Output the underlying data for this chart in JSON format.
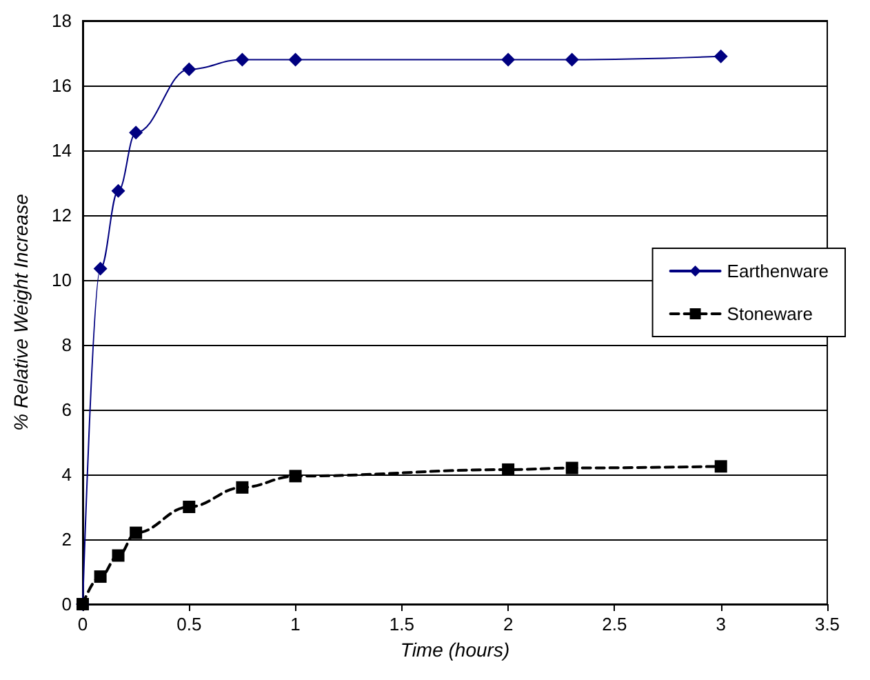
{
  "chart_data": {
    "type": "line",
    "xlabel": "Time (hours)",
    "ylabel": "% Relative Weight Increase",
    "xlim": [
      0,
      3.5
    ],
    "xticks": [
      0,
      0.5,
      1,
      1.5,
      2,
      2.5,
      3,
      3.5
    ],
    "ylim": [
      0,
      18
    ],
    "yticks": [
      0,
      2,
      4,
      6,
      8,
      10,
      12,
      14,
      16,
      18
    ],
    "x": [
      0,
      0.083,
      0.167,
      0.25,
      0.5,
      0.75,
      1,
      2,
      2.3,
      3
    ],
    "series": [
      {
        "name": "Earthenware",
        "color": "#000080",
        "marker": "diamond",
        "line_style": "solid",
        "values": [
          0,
          10.35,
          12.75,
          14.55,
          16.5,
          16.8,
          16.8,
          16.8,
          16.8,
          16.9
        ]
      },
      {
        "name": "Stoneware",
        "color": "#000000",
        "marker": "square",
        "line_style": "dashed",
        "values": [
          0,
          0.85,
          1.5,
          2.2,
          3.0,
          3.6,
          3.95,
          4.15,
          4.2,
          4.25
        ]
      }
    ],
    "grid": "y",
    "legend": "right"
  }
}
